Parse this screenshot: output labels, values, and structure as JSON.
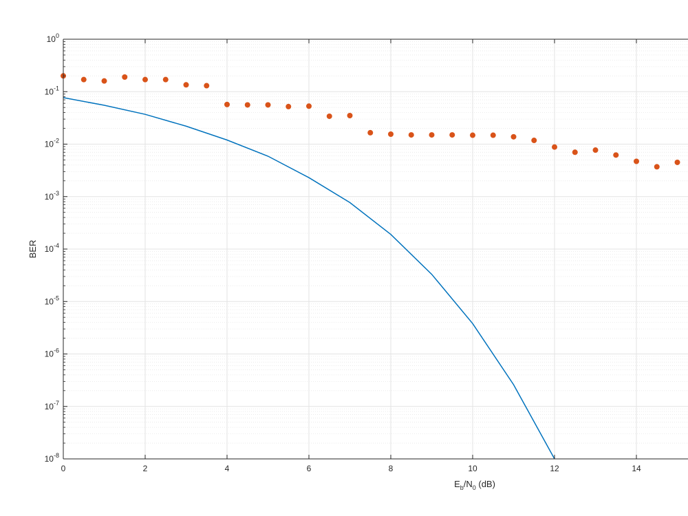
{
  "chart_data": {
    "type": "line",
    "xlabel": {
      "main": "E",
      "sub_b": "b",
      "slash": "/N",
      "sub_0": "0",
      "unit": " (dB)"
    },
    "ylabel": "BER",
    "xlim": [
      0,
      15
    ],
    "ylim": [
      1e-08,
      1
    ],
    "y_scale": "log",
    "grid": true,
    "minor_grid": true,
    "x_ticks": [
      0,
      2,
      4,
      6,
      8,
      10,
      12,
      14
    ],
    "x_tick_labels": [
      "0",
      "2",
      "4",
      "6",
      "8",
      "10",
      "12",
      "14"
    ],
    "y_tick_exponents": [
      0,
      -1,
      -2,
      -3,
      -4,
      -5,
      -6,
      -7,
      -8
    ],
    "y_tick_labels": [
      {
        "base": "10",
        "exp": "0"
      },
      {
        "base": "10",
        "exp": "-1"
      },
      {
        "base": "10",
        "exp": "-2"
      },
      {
        "base": "10",
        "exp": "-3"
      },
      {
        "base": "10",
        "exp": "-4"
      },
      {
        "base": "10",
        "exp": "-5"
      },
      {
        "base": "10",
        "exp": "-6"
      },
      {
        "base": "10",
        "exp": "-7"
      },
      {
        "base": "10",
        "exp": "-8"
      }
    ],
    "series": [
      {
        "kind": "line",
        "color": "#0072BD",
        "x": [
          0,
          1,
          2,
          3,
          4,
          5,
          6,
          7,
          8,
          9,
          10,
          11,
          12
        ],
        "y": [
          0.077,
          0.055,
          0.037,
          0.022,
          0.012,
          0.0059,
          0.0023,
          0.00077,
          0.00019,
          3.3e-05,
          3.8e-06,
          2.6e-07,
          1e-08
        ]
      },
      {
        "kind": "scatter",
        "color": "#D95319",
        "x": [
          0,
          0.5,
          1,
          1.5,
          2,
          2.5,
          3,
          3.5,
          4,
          4.5,
          5,
          5.5,
          6,
          6.5,
          7,
          7.5,
          8,
          8.5,
          9,
          9.5,
          10,
          10.5,
          11,
          11.5,
          12,
          12.5,
          13,
          13.5,
          14,
          14.5,
          15
        ],
        "y": [
          0.2,
          0.17,
          0.16,
          0.19,
          0.17,
          0.17,
          0.135,
          0.13,
          0.057,
          0.056,
          0.056,
          0.052,
          0.053,
          0.034,
          0.035,
          0.0165,
          0.0155,
          0.015,
          0.015,
          0.015,
          0.0148,
          0.0148,
          0.0138,
          0.0118,
          0.0088,
          0.007,
          0.0077,
          0.0062,
          0.0047,
          0.0037,
          0.0045
        ]
      }
    ]
  }
}
